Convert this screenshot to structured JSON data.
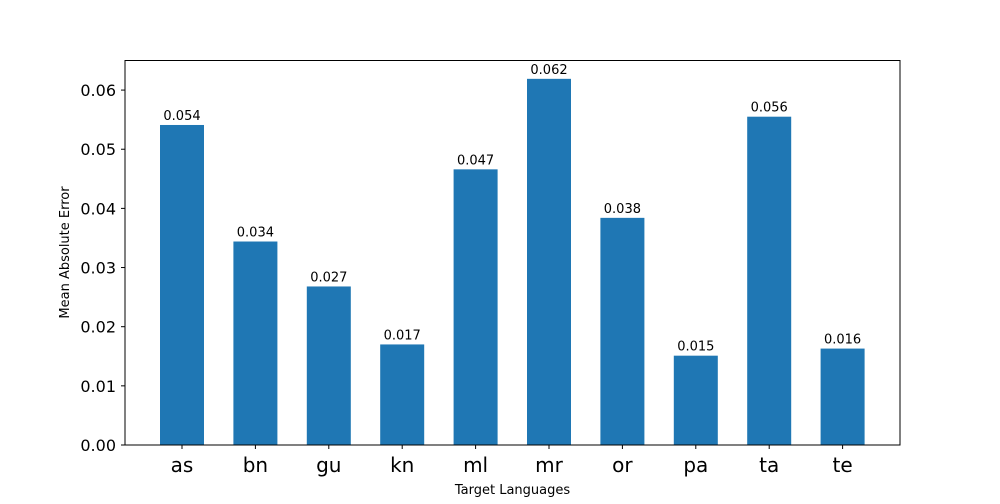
{
  "chart_data": {
    "type": "bar",
    "title": "",
    "xlabel": "Target Languages",
    "ylabel": "Mean Absolute Error",
    "categories": [
      "as",
      "bn",
      "gu",
      "kn",
      "ml",
      "mr",
      "or",
      "pa",
      "ta",
      "te"
    ],
    "values": [
      0.0541,
      0.0344,
      0.0268,
      0.017,
      0.0466,
      0.0619,
      0.0384,
      0.0151,
      0.0555,
      0.0163
    ],
    "data_labels": [
      "0.054",
      "0.034",
      "0.027",
      "0.017",
      "0.047",
      "0.062",
      "0.038",
      "0.015",
      "0.056",
      "0.016"
    ],
    "ylim": [
      0,
      0.065
    ],
    "yticks": [
      0,
      0.01,
      0.02,
      0.03,
      0.04,
      0.05,
      0.06
    ],
    "ytick_labels": [
      "0.00",
      "0.01",
      "0.02",
      "0.03",
      "0.04",
      "0.05",
      "0.06"
    ],
    "bar_color": "#1f77b4",
    "grid": false,
    "legend": "none"
  }
}
